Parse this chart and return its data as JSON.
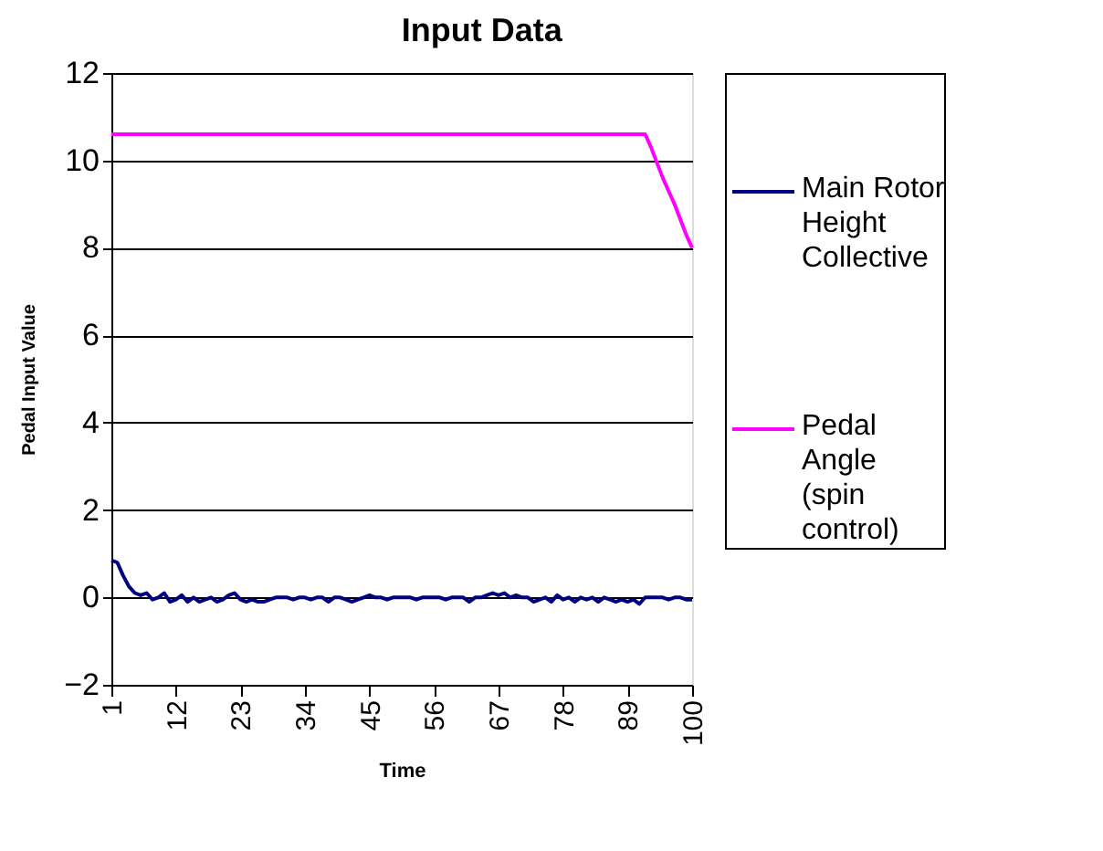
{
  "chart_data": {
    "type": "line",
    "title": "Input Data",
    "xlabel": "Time",
    "ylabel": "Pedal Input Value",
    "x": [
      1,
      2,
      3,
      4,
      5,
      6,
      7,
      8,
      9,
      10,
      11,
      12,
      13,
      14,
      15,
      16,
      17,
      18,
      19,
      20,
      21,
      22,
      23,
      24,
      25,
      26,
      27,
      28,
      29,
      30,
      31,
      32,
      33,
      34,
      35,
      36,
      37,
      38,
      39,
      40,
      41,
      42,
      43,
      44,
      45,
      46,
      47,
      48,
      49,
      50,
      51,
      52,
      53,
      54,
      55,
      56,
      57,
      58,
      59,
      60,
      61,
      62,
      63,
      64,
      65,
      66,
      67,
      68,
      69,
      70,
      71,
      72,
      73,
      74,
      75,
      76,
      77,
      78,
      79,
      80,
      81,
      82,
      83,
      84,
      85,
      86,
      87,
      88,
      89,
      90,
      91,
      92,
      93,
      94,
      95,
      96,
      97,
      98,
      99,
      100
    ],
    "series": [
      {
        "name": "Main Rotor Height Collective",
        "color": "#000080",
        "values": [
          0.85,
          0.8,
          0.5,
          0.25,
          0.1,
          0.05,
          0.1,
          -0.05,
          0.0,
          0.1,
          -0.1,
          -0.05,
          0.05,
          -0.1,
          0.0,
          -0.1,
          -0.05,
          0.0,
          -0.1,
          -0.05,
          0.05,
          0.1,
          -0.05,
          -0.1,
          -0.05,
          -0.1,
          -0.1,
          -0.05,
          0.0,
          0.0,
          0.0,
          -0.05,
          0.0,
          0.0,
          -0.05,
          0.0,
          0.0,
          -0.1,
          0.0,
          0.0,
          -0.05,
          -0.1,
          -0.05,
          0.0,
          0.05,
          0.0,
          0.0,
          -0.05,
          0.0,
          0.0,
          0.0,
          0.0,
          -0.05,
          0.0,
          0.0,
          0.0,
          0.0,
          -0.05,
          0.0,
          0.0,
          0.0,
          -0.1,
          0.0,
          0.0,
          0.05,
          0.1,
          0.05,
          0.1,
          0.0,
          0.05,
          0.0,
          0.0,
          -0.1,
          -0.05,
          0.0,
          -0.1,
          0.05,
          -0.05,
          0.0,
          -0.1,
          0.0,
          -0.05,
          0.0,
          -0.1,
          0.0,
          -0.05,
          -0.1,
          -0.05,
          -0.1,
          -0.05,
          -0.15,
          0.0,
          0.0,
          0.0,
          0.0,
          -0.05,
          0.0,
          0.0,
          -0.05,
          -0.05
        ]
      },
      {
        "name": "Pedal Angle (spin control)",
        "color": "#ff00ff",
        "values": [
          10.6,
          10.6,
          10.6,
          10.6,
          10.6,
          10.6,
          10.6,
          10.6,
          10.6,
          10.6,
          10.6,
          10.6,
          10.6,
          10.6,
          10.6,
          10.6,
          10.6,
          10.6,
          10.6,
          10.6,
          10.6,
          10.6,
          10.6,
          10.6,
          10.6,
          10.6,
          10.6,
          10.6,
          10.6,
          10.6,
          10.6,
          10.6,
          10.6,
          10.6,
          10.6,
          10.6,
          10.6,
          10.6,
          10.6,
          10.6,
          10.6,
          10.6,
          10.6,
          10.6,
          10.6,
          10.6,
          10.6,
          10.6,
          10.6,
          10.6,
          10.6,
          10.6,
          10.6,
          10.6,
          10.6,
          10.6,
          10.6,
          10.6,
          10.6,
          10.6,
          10.6,
          10.6,
          10.6,
          10.6,
          10.6,
          10.6,
          10.6,
          10.6,
          10.6,
          10.6,
          10.6,
          10.6,
          10.6,
          10.6,
          10.6,
          10.6,
          10.6,
          10.6,
          10.6,
          10.6,
          10.6,
          10.6,
          10.6,
          10.6,
          10.6,
          10.6,
          10.6,
          10.6,
          10.6,
          10.6,
          10.6,
          10.6,
          10.3,
          9.95,
          9.6,
          9.3,
          9.0,
          8.65,
          8.3,
          8.0
        ]
      }
    ],
    "xlim": [
      1,
      100
    ],
    "xticks": [
      1,
      12,
      23,
      34,
      45,
      56,
      67,
      78,
      89,
      100
    ],
    "ylim": [
      -2,
      12
    ],
    "yticks": [
      -2,
      0,
      2,
      4,
      6,
      8,
      10,
      12
    ],
    "grid": "y",
    "legend": "right",
    "line_style": "solid",
    "marker": "none"
  }
}
